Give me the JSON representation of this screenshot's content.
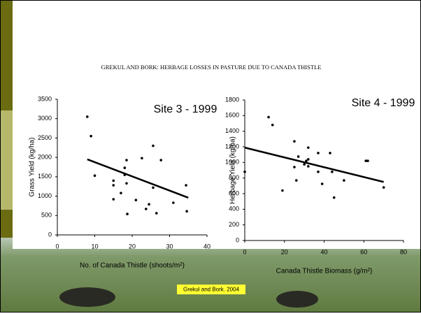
{
  "header": {
    "title": "GREKUL AND BORK: HERBAGE LOSSES IN PASTURE DUE TO CANADA THISTLE"
  },
  "caption": "Grekul and Bork. 2004",
  "chart_data": [
    {
      "type": "scatter",
      "title": "Site 3 - 1999",
      "x_label": "No. of Canada Thistle (shoots/m²)",
      "y_label": "Grass Yield (kg/ha)",
      "x": [
        8,
        9,
        10,
        15,
        15,
        15,
        17,
        18,
        18,
        18.5,
        18.5,
        18.7,
        21,
        22.6,
        23.7,
        24.5,
        25.6,
        25.6,
        26.5,
        27.7,
        31,
        34.4,
        34.6
      ],
      "values": [
        3050,
        2550,
        1530,
        1400,
        1280,
        920,
        1080,
        1730,
        1550,
        1330,
        1930,
        540,
        900,
        1980,
        670,
        790,
        2300,
        1220,
        560,
        1930,
        830,
        1280,
        610
      ],
      "trendline": {
        "x": [
          8,
          35
        ],
        "values": [
          1950,
          960
        ]
      },
      "color": "#000000",
      "xlim": [
        0,
        40
      ],
      "xticks": [
        0,
        10,
        20,
        30,
        40
      ],
      "ylim": [
        0,
        3500
      ],
      "yticks": [
        0,
        500,
        1000,
        1500,
        2000,
        2500,
        3000,
        3500
      ]
    },
    {
      "type": "scatter",
      "title": "Site 4 - 1999",
      "x_label": "Canada Thistle Biomass (g/m²)",
      "y_label": "Herbage Yield (kg/ha)",
      "x": [
        0,
        12,
        14,
        19,
        25,
        25,
        26,
        27,
        30,
        31,
        32,
        32,
        32,
        37,
        37,
        39,
        43,
        44,
        45,
        50,
        61,
        62,
        70
      ],
      "values": [
        880,
        1580,
        1480,
        640,
        1270,
        940,
        770,
        1075,
        975,
        1020,
        1040,
        1190,
        950,
        1120,
        880,
        725,
        1120,
        880,
        550,
        770,
        1020,
        1020,
        680
      ],
      "trendline": {
        "x": [
          0,
          70
        ],
        "values": [
          1190,
          750
        ]
      },
      "color": "#000000",
      "xlim": [
        0,
        80
      ],
      "xticks": [
        0,
        20,
        40,
        60,
        80
      ],
      "ylim": [
        0,
        1800
      ],
      "yticks": [
        0,
        200,
        400,
        600,
        800,
        1000,
        1200,
        1400,
        1600,
        1800
      ]
    }
  ]
}
